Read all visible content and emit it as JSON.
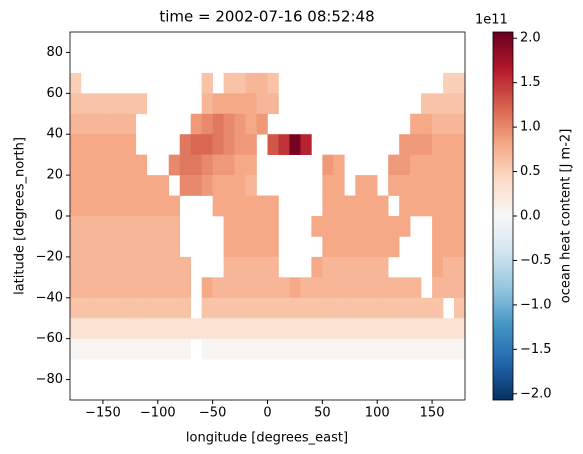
{
  "chart_data": {
    "type": "heatmap",
    "title": "time = 2002-07-16 08:52:48",
    "xlabel": "longitude [degrees_east]",
    "ylabel": "latitude [degrees_north]",
    "colorbar_label": "ocean heat content [J m-2]",
    "colorbar_offset": "1e11",
    "colormap": "RdBu_r",
    "x": [
      -175,
      -165,
      -155,
      -145,
      -135,
      -125,
      -115,
      -105,
      -95,
      -85,
      -75,
      -65,
      -55,
      -45,
      -35,
      -25,
      -15,
      -5,
      5,
      15,
      25,
      35,
      45,
      55,
      65,
      75,
      85,
      95,
      105,
      115,
      125,
      135,
      145,
      155,
      165,
      175
    ],
    "y": [
      65,
      55,
      45,
      35,
      25,
      15,
      5,
      -5,
      -15,
      -25,
      -35,
      -45,
      -55,
      -65
    ],
    "values": [
      [
        0.5,
        null,
        null,
        null,
        null,
        null,
        null,
        null,
        null,
        null,
        null,
        null,
        0.6,
        null,
        0.6,
        0.6,
        0.7,
        0.7,
        0.6,
        null,
        null,
        null,
        null,
        null,
        null,
        null,
        null,
        null,
        null,
        null,
        null,
        null,
        null,
        null,
        0.5,
        0.5
      ],
      [
        0.6,
        0.6,
        0.6,
        0.6,
        0.6,
        0.6,
        0.6,
        null,
        null,
        null,
        null,
        null,
        0.7,
        0.8,
        0.8,
        0.8,
        0.8,
        0.7,
        0.7,
        null,
        null,
        null,
        null,
        null,
        null,
        null,
        null,
        null,
        null,
        null,
        null,
        null,
        0.6,
        0.6,
        0.6,
        0.6
      ],
      [
        0.7,
        0.7,
        0.7,
        0.7,
        0.7,
        0.7,
        null,
        null,
        null,
        null,
        null,
        0.9,
        1.0,
        1.1,
        1.0,
        0.9,
        0.8,
        0.9,
        null,
        null,
        null,
        null,
        null,
        null,
        null,
        null,
        null,
        null,
        null,
        null,
        null,
        0.8,
        0.8,
        0.7,
        0.7,
        0.7
      ],
      [
        0.8,
        0.8,
        0.8,
        0.8,
        0.8,
        0.8,
        null,
        null,
        null,
        null,
        1.1,
        1.2,
        1.2,
        1.1,
        1.0,
        0.9,
        0.9,
        null,
        1.3,
        1.5,
        2.0,
        1.6,
        null,
        null,
        null,
        null,
        null,
        null,
        null,
        null,
        0.9,
        0.9,
        0.9,
        0.8,
        0.8,
        0.8
      ],
      [
        0.8,
        0.8,
        0.8,
        0.8,
        0.8,
        0.8,
        0.8,
        null,
        null,
        1.0,
        1.1,
        1.1,
        1.0,
        0.9,
        0.9,
        0.8,
        0.8,
        null,
        null,
        null,
        null,
        null,
        null,
        0.9,
        0.8,
        null,
        null,
        null,
        null,
        0.9,
        0.9,
        0.8,
        0.8,
        0.8,
        0.8,
        0.8
      ],
      [
        0.8,
        0.8,
        0.8,
        0.8,
        0.8,
        0.8,
        0.8,
        0.8,
        0.8,
        null,
        1.0,
        1.0,
        0.9,
        0.8,
        0.8,
        0.8,
        0.7,
        null,
        null,
        null,
        null,
        null,
        null,
        0.8,
        0.8,
        null,
        0.8,
        0.8,
        null,
        0.8,
        0.8,
        0.8,
        0.8,
        0.8,
        0.8,
        0.8
      ],
      [
        0.8,
        0.8,
        0.8,
        0.8,
        0.8,
        0.8,
        0.8,
        0.8,
        0.8,
        0.8,
        null,
        null,
        null,
        0.8,
        0.8,
        0.8,
        0.8,
        0.8,
        0.8,
        null,
        null,
        null,
        null,
        0.8,
        0.8,
        0.8,
        0.8,
        0.8,
        0.8,
        null,
        0.8,
        0.8,
        0.8,
        0.8,
        0.8,
        0.8
      ],
      [
        0.7,
        0.7,
        0.7,
        0.7,
        0.7,
        0.7,
        0.7,
        0.7,
        0.7,
        0.7,
        null,
        null,
        null,
        null,
        0.8,
        0.8,
        0.8,
        0.8,
        0.8,
        null,
        null,
        null,
        0.8,
        0.8,
        0.8,
        0.8,
        0.8,
        0.8,
        0.8,
        0.8,
        0.8,
        null,
        null,
        0.8,
        0.8,
        0.8
      ],
      [
        0.7,
        0.7,
        0.7,
        0.7,
        0.7,
        0.7,
        0.7,
        0.7,
        0.7,
        0.7,
        null,
        null,
        null,
        null,
        0.8,
        0.8,
        0.8,
        0.8,
        0.8,
        null,
        null,
        null,
        null,
        0.8,
        0.8,
        0.8,
        0.8,
        0.8,
        0.8,
        0.8,
        null,
        null,
        null,
        0.8,
        0.8,
        0.8
      ],
      [
        0.7,
        0.7,
        0.7,
        0.7,
        0.7,
        0.7,
        0.7,
        0.7,
        0.7,
        0.7,
        0.7,
        null,
        null,
        null,
        0.7,
        0.7,
        0.7,
        0.7,
        0.7,
        null,
        null,
        null,
        0.8,
        0.7,
        0.7,
        0.7,
        0.7,
        0.7,
        0.7,
        null,
        null,
        null,
        null,
        0.8,
        0.7,
        0.7
      ],
      [
        0.7,
        0.7,
        0.7,
        0.7,
        0.7,
        0.7,
        0.7,
        0.7,
        0.7,
        0.7,
        0.7,
        null,
        0.8,
        0.7,
        0.7,
        0.7,
        0.7,
        0.7,
        0.7,
        0.7,
        0.8,
        0.7,
        0.7,
        0.7,
        0.7,
        0.7,
        0.7,
        0.7,
        0.7,
        0.7,
        0.7,
        0.7,
        null,
        0.7,
        0.7,
        0.7
      ],
      [
        0.6,
        0.6,
        0.6,
        0.6,
        0.6,
        0.6,
        0.6,
        0.6,
        0.6,
        0.6,
        0.6,
        null,
        0.6,
        0.6,
        0.6,
        0.6,
        0.6,
        0.6,
        0.6,
        0.6,
        0.6,
        0.6,
        0.6,
        0.6,
        0.6,
        0.6,
        0.6,
        0.6,
        0.6,
        0.6,
        0.6,
        0.6,
        0.6,
        0.6,
        null,
        0.6
      ],
      [
        0.3,
        0.3,
        0.3,
        0.3,
        0.3,
        0.3,
        0.3,
        0.3,
        0.3,
        0.3,
        0.3,
        0.3,
        0.3,
        0.3,
        0.3,
        0.3,
        0.3,
        0.3,
        0.3,
        0.3,
        0.3,
        0.3,
        0.3,
        0.3,
        0.3,
        0.3,
        0.3,
        0.3,
        0.3,
        0.3,
        0.3,
        0.3,
        0.3,
        0.3,
        0.3,
        0.3
      ],
      [
        0.05,
        0.05,
        0.05,
        0.05,
        0.05,
        0.05,
        0.05,
        0.05,
        0.05,
        0.05,
        0.05,
        null,
        0.05,
        0.05,
        0.05,
        0.05,
        0.05,
        0.05,
        0.05,
        0.05,
        0.05,
        0.05,
        0.05,
        0.05,
        0.05,
        0.05,
        0.05,
        0.05,
        0.05,
        0.05,
        0.05,
        0.05,
        0.05,
        0.05,
        0.05,
        0.05
      ]
    ],
    "xlim": [
      -180,
      180
    ],
    "ylim": [
      -90,
      90
    ],
    "xticks": [
      {
        "value": -150,
        "label": "−150"
      },
      {
        "value": -100,
        "label": "−100"
      },
      {
        "value": -50,
        "label": "−50"
      },
      0,
      50,
      100,
      150
    ],
    "yticks": [
      {
        "value": -80,
        "label": "−80"
      },
      {
        "value": -60,
        "label": "−60"
      },
      {
        "value": -40,
        "label": "−40"
      },
      {
        "value": -20,
        "label": "−20"
      },
      0,
      20,
      40,
      60,
      80
    ],
    "clim": [
      -2.07,
      2.07
    ],
    "cticks": [
      {
        "value": -2,
        "label": "−2.0"
      },
      {
        "value": -1.5,
        "label": "−1.5"
      },
      {
        "value": -1,
        "label": "−1.0"
      },
      {
        "value": -0.5,
        "label": "−0.5"
      },
      {
        "value": 0,
        "label": "0.0"
      },
      {
        "value": 0.5,
        "label": "0.5"
      },
      {
        "value": 1,
        "label": "1.0"
      },
      {
        "value": 1.5,
        "label": "1.5"
      },
      {
        "value": 2,
        "label": "2.0"
      }
    ]
  }
}
